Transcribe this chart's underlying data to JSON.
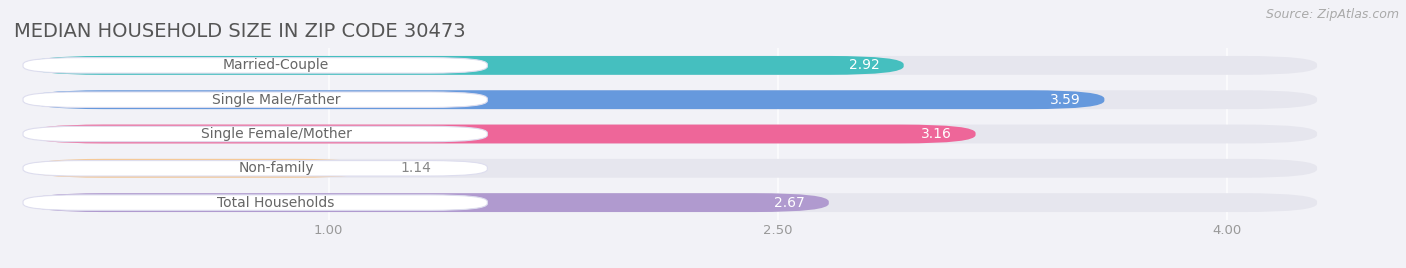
{
  "title": "MEDIAN HOUSEHOLD SIZE IN ZIP CODE 30473",
  "source": "Source: ZipAtlas.com",
  "categories": [
    "Married-Couple",
    "Single Male/Father",
    "Single Female/Mother",
    "Non-family",
    "Total Households"
  ],
  "values": [
    2.92,
    3.59,
    3.16,
    1.14,
    2.67
  ],
  "bar_colors": [
    "#45bfbf",
    "#6699dd",
    "#ee6699",
    "#f5c998",
    "#b09acf"
  ],
  "value_colors": [
    "#555555",
    "#ffffff",
    "#ffffff",
    "#777777",
    "#777777"
  ],
  "xlim_min": 0.0,
  "xlim_max": 4.3,
  "data_min": 1.0,
  "data_max": 4.0,
  "xticks": [
    1.0,
    2.5,
    4.0
  ],
  "xtick_labels": [
    "1.00",
    "2.50",
    "4.00"
  ],
  "background_color": "#f2f2f7",
  "bar_bg_color": "#e6e6ee",
  "label_bg_color": "#ffffff",
  "label_text_color": "#666666",
  "title_fontsize": 14,
  "source_fontsize": 9,
  "label_fontsize": 10,
  "value_fontsize": 10
}
